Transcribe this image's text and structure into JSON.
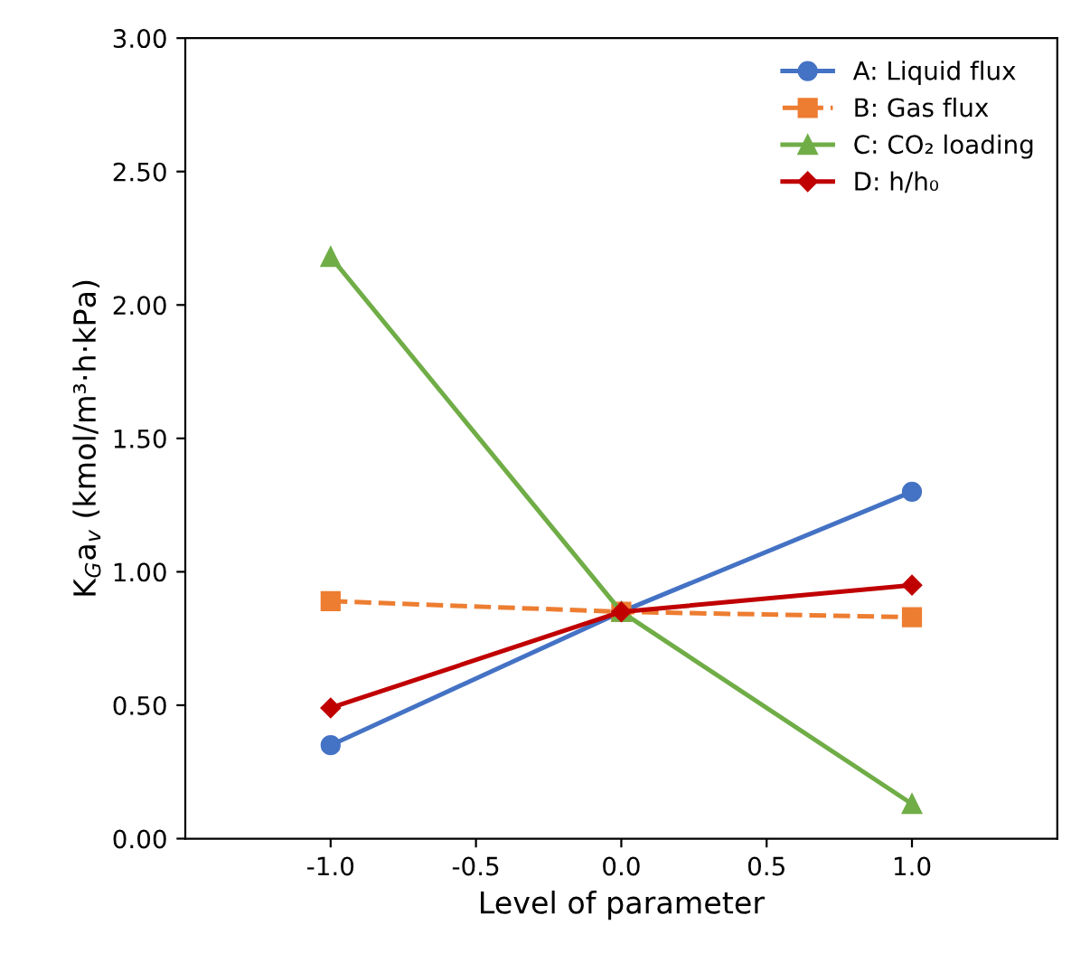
{
  "chart_data": {
    "type": "line",
    "xlabel": "Level of parameter",
    "ylabel": "K$_{G}$a$_{v}$ (kmol/m³·h·kPa)",
    "x": [
      -1.0,
      0.0,
      1.0
    ],
    "series": [
      {
        "name": "A: Liquid flux",
        "color": "#4472c4",
        "values": [
          0.35,
          0.85,
          1.3
        ],
        "marker": "circle",
        "line_style": "solid"
      },
      {
        "name": "B: Gas flux",
        "color": "#ed7d31",
        "values": [
          0.89,
          0.85,
          0.83
        ],
        "marker": "square",
        "line_style": "dashed"
      },
      {
        "name": "C: CO₂ loading",
        "color": "#70ad47",
        "values": [
          2.18,
          0.85,
          0.13
        ],
        "marker": "triangle",
        "line_style": "solid"
      },
      {
        "name": "D: h/h₀",
        "color": "#c00000",
        "values": [
          0.49,
          0.85,
          0.95
        ],
        "marker": "diamond",
        "line_style": "solid"
      }
    ],
    "xlim": [
      -1.5,
      1.5
    ],
    "xticks": [
      {
        "value": -1.0,
        "label": "-1.0"
      },
      {
        "value": -0.5,
        "label": "-0.5"
      },
      {
        "value": 0.0,
        "label": "0.0"
      },
      {
        "value": 0.5,
        "label": "0.5"
      },
      {
        "value": 1.0,
        "label": "1.0"
      }
    ],
    "ylim": [
      0,
      3
    ],
    "yticks": [
      {
        "value": 0,
        "label": "0.00"
      },
      {
        "value": 0.5,
        "label": "0.50"
      },
      {
        "value": 1.0,
        "label": "1.00"
      },
      {
        "value": 1.5,
        "label": "1.50"
      },
      {
        "value": 2.0,
        "label": "2.00"
      },
      {
        "value": 2.5,
        "label": "2.50"
      },
      {
        "value": 3.0,
        "label": "3.00"
      }
    ],
    "grid": false,
    "legend": "top right"
  }
}
